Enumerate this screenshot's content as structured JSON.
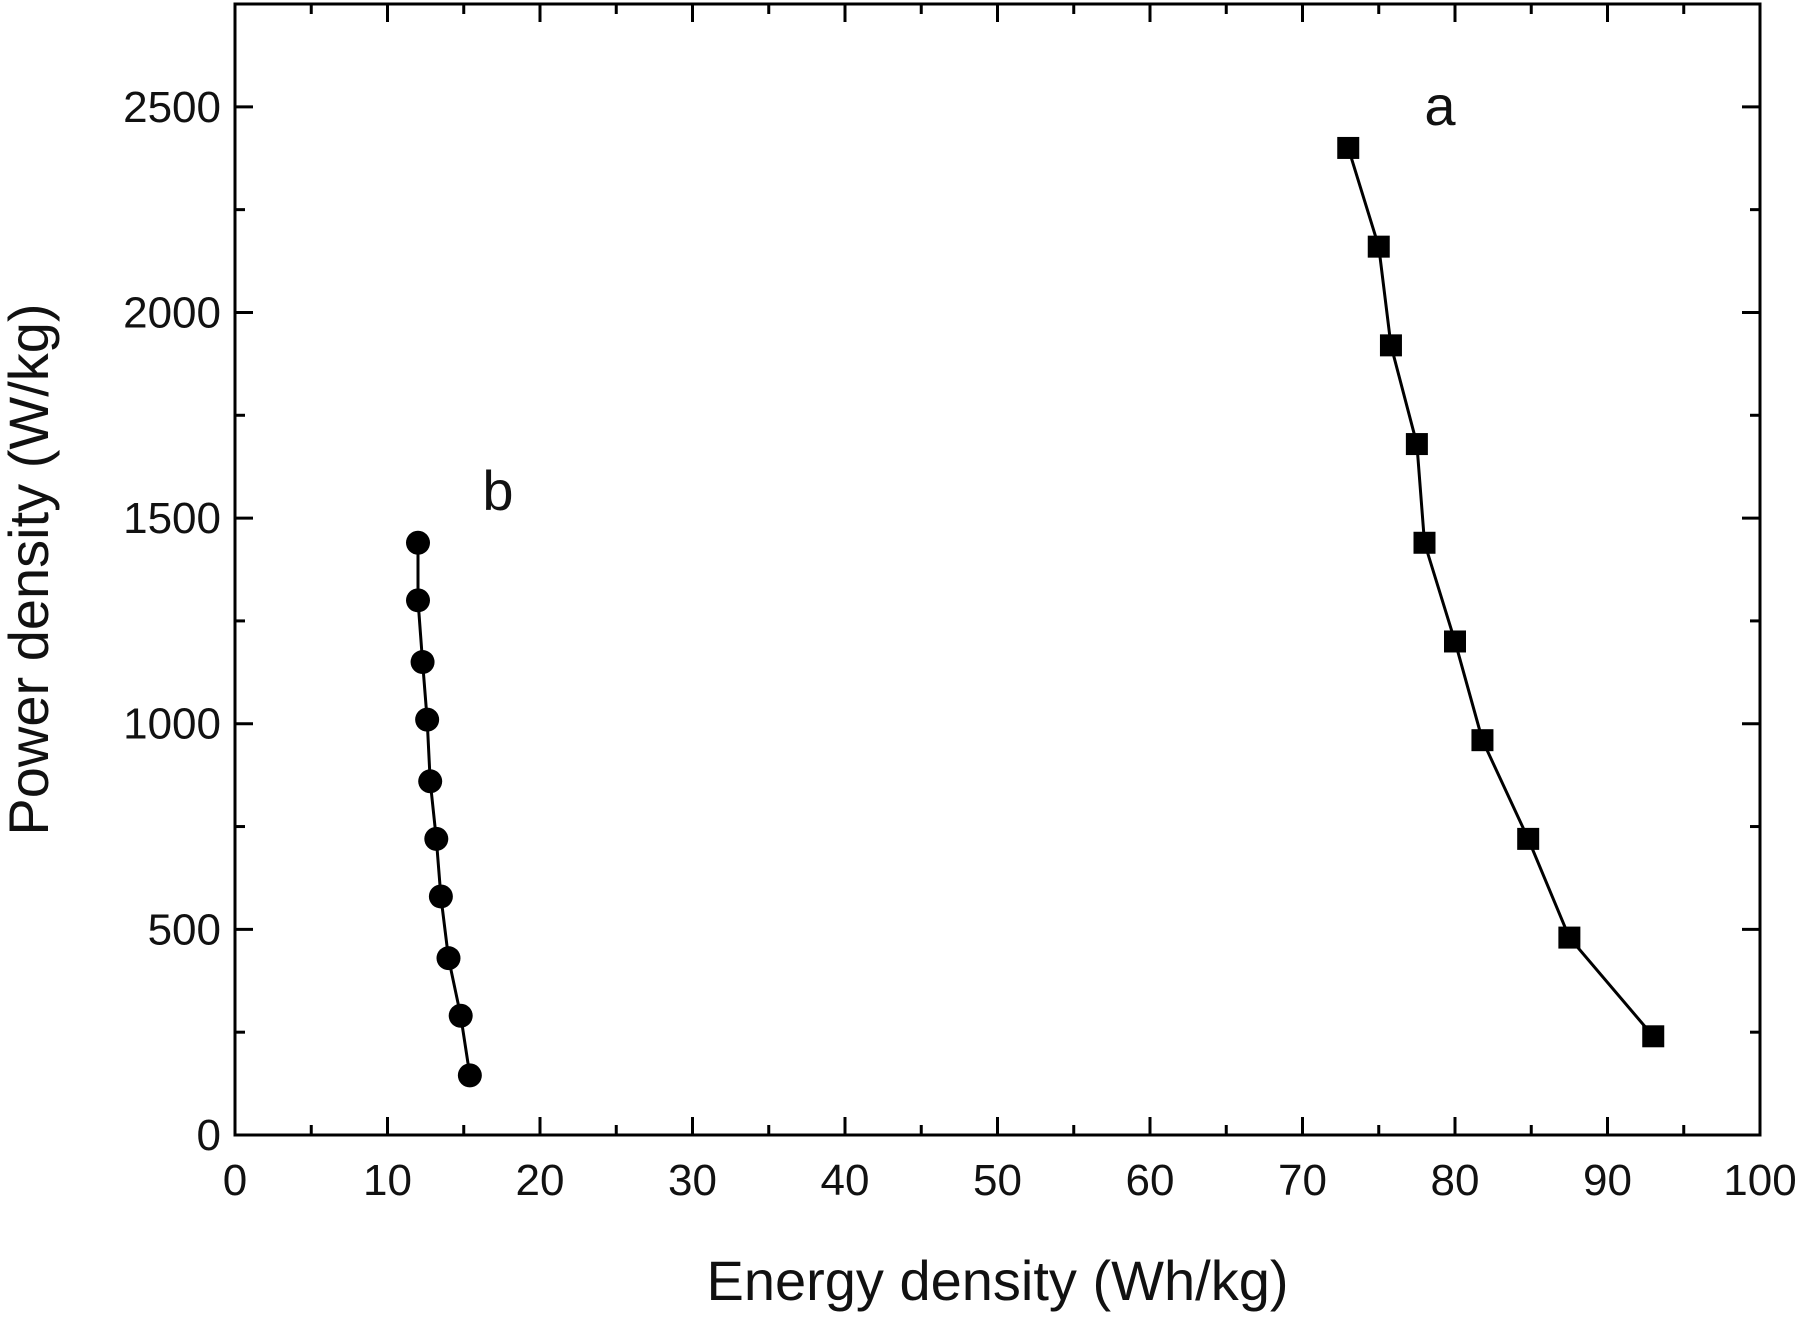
{
  "chart_data": {
    "type": "line",
    "title": "",
    "xlabel": "Energy density (Wh/kg)",
    "ylabel": "Power density (W/kg)",
    "xlim": [
      0,
      100
    ],
    "ylim": [
      0,
      2750
    ],
    "xticks": [
      0,
      10,
      20,
      30,
      40,
      50,
      60,
      70,
      80,
      90,
      100
    ],
    "yticks": [
      0,
      500,
      1000,
      1500,
      2000,
      2500
    ],
    "grid": false,
    "legend": "none",
    "series": [
      {
        "name": "a",
        "marker": "square",
        "color": "#000000",
        "x": [
          73.0,
          75.0,
          75.8,
          77.5,
          78.0,
          80.0,
          81.8,
          84.8,
          87.5,
          93.0
        ],
        "y": [
          2400,
          2160,
          1920,
          1680,
          1440,
          1200,
          960,
          720,
          480,
          240
        ]
      },
      {
        "name": "b",
        "marker": "circle",
        "color": "#000000",
        "x": [
          12.0,
          12.0,
          12.3,
          12.6,
          12.8,
          13.2,
          13.5,
          14.0,
          14.8,
          15.4
        ],
        "y": [
          1440,
          1300,
          1150,
          1010,
          860,
          720,
          580,
          430,
          290,
          145
        ]
      }
    ]
  }
}
